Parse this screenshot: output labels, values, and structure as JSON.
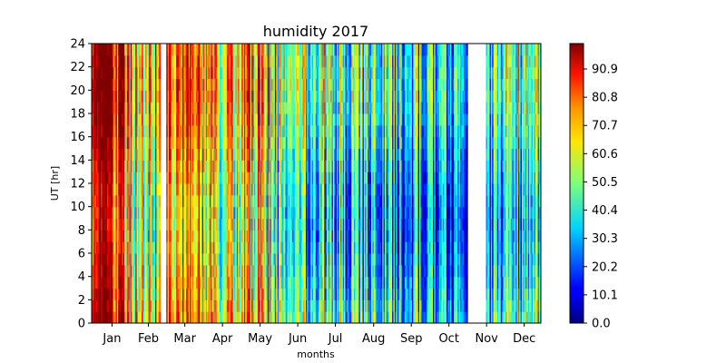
{
  "chart_data": {
    "type": "heatmap",
    "title": "humidity 2017",
    "xlabel": "months",
    "ylabel": "UT [hr]",
    "x_tick_labels": [
      "Jan",
      "Feb",
      "Mar",
      "Apr",
      "May",
      "Jun",
      "Jul",
      "Aug",
      "Sep",
      "Oct",
      "Nov",
      "Dec"
    ],
    "y_range": [
      0,
      24
    ],
    "y_ticks": [
      0,
      2,
      4,
      6,
      8,
      10,
      12,
      14,
      16,
      18,
      20,
      22,
      24
    ],
    "y_tick_labels": [
      "0",
      "2",
      "4",
      "6",
      "8",
      "10",
      "12",
      "14",
      "16",
      "18",
      "20",
      "22",
      "24"
    ],
    "x_range_days": [
      1,
      365
    ],
    "colorbar": {
      "range": [
        0,
        100
      ],
      "ticks": [
        0.0,
        10.1,
        20.2,
        30.3,
        40.4,
        50.5,
        60.6,
        70.7,
        80.8,
        90.9
      ],
      "tick_labels": [
        "0.0",
        "10.1",
        "20.2",
        "30.3",
        "40.4",
        "50.5",
        "60.6",
        "70.7",
        "80.8",
        "90.9"
      ],
      "colormap": "jet"
    },
    "gaps_days": [
      [
        57,
        61
      ],
      [
        306,
        320
      ]
    ],
    "daily_mean_humidity": {
      "Jan": 87,
      "Feb": 62,
      "Mar": 76,
      "Apr": 55,
      "May": 62,
      "Jun": 45,
      "Jul": 40,
      "Aug": 35,
      "Sep": 33,
      "Oct": 30,
      "Nov": 30,
      "Dec": 42
    }
  }
}
